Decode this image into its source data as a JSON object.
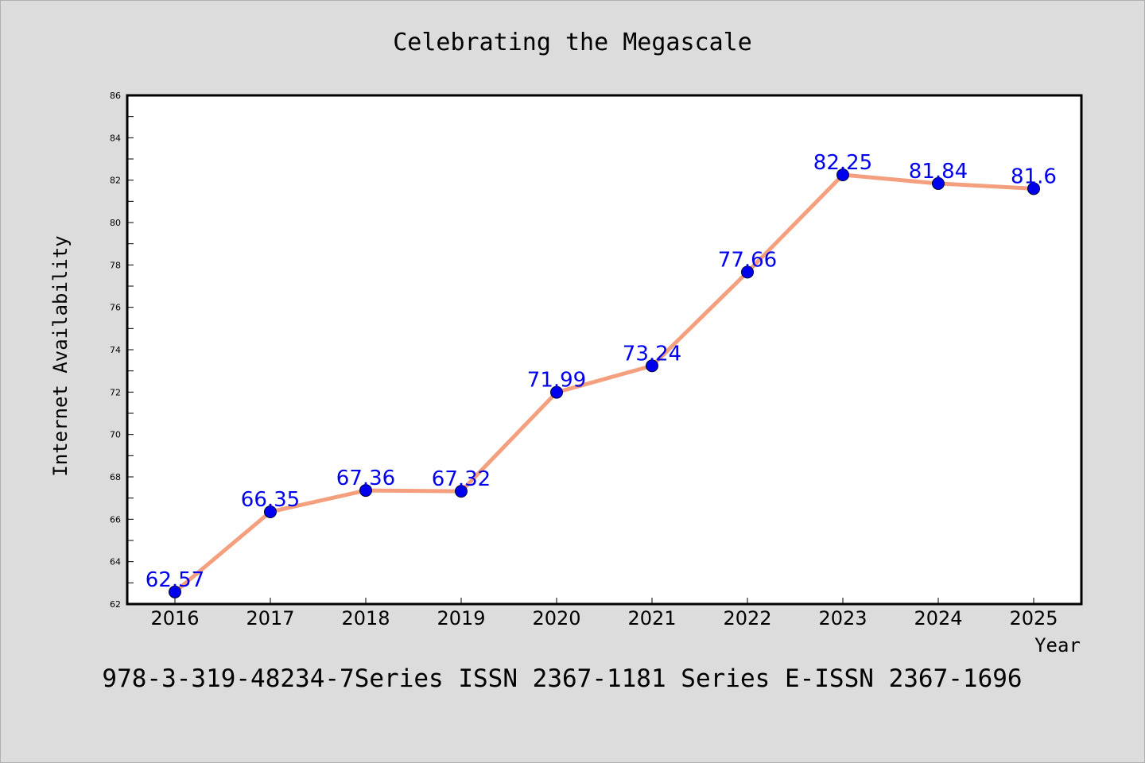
{
  "chart_data": {
    "type": "line",
    "title": "Celebrating the Megascale",
    "xlabel": "Year",
    "ylabel": "Internet Availability",
    "categories": [
      "2016",
      "2017",
      "2018",
      "2019",
      "2020",
      "2021",
      "2022",
      "2023",
      "2024",
      "2025"
    ],
    "series": [
      {
        "values": [
          62.57,
          66.35,
          67.36,
          67.32,
          71.99,
          73.24,
          77.66,
          82.25,
          81.84,
          81.6
        ],
        "data_labels": [
          "62.57",
          "66.35",
          "67.36",
          "67.32",
          "71.99",
          "73.24",
          "77.66",
          "82.25",
          "81.84",
          "81.6"
        ],
        "line_color": "#f4a07e",
        "marker_color": "#0000ee",
        "label_color": "#0000ee"
      }
    ],
    "ylim": [
      62,
      86
    ],
    "yticks": [
      "62",
      "64",
      "66",
      "68",
      "70",
      "72",
      "74",
      "76",
      "78",
      "80",
      "82",
      "84",
      "86"
    ],
    "grid": false,
    "legend": "none"
  },
  "footer": {
    "text": "978-3-319-48234-7Series ISSN 2367-1181 Series E-ISSN 2367-1696"
  },
  "colors": {
    "background": "#dcdcdc",
    "plot_background": "#ffffff"
  }
}
